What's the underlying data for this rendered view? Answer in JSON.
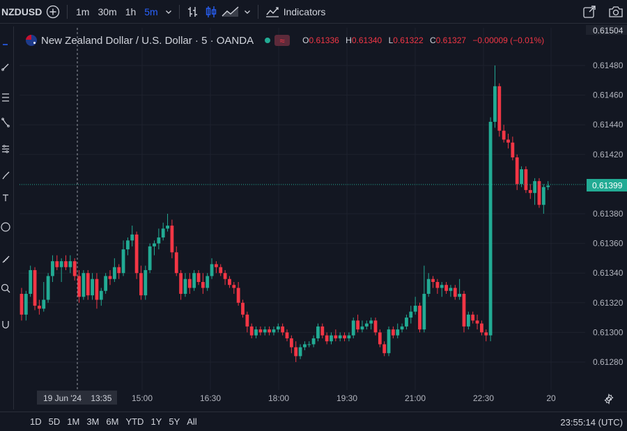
{
  "toolbar": {
    "symbol": "NZDUSD",
    "intervals": [
      "1m",
      "30m",
      "1h",
      "5m"
    ],
    "active_interval": "5m",
    "indicators_label": "Indicators"
  },
  "legend": {
    "title": "New Zealand Dollar / U.S. Dollar · 5 · OANDA",
    "badge": "≈",
    "o_label": "O",
    "o_value": "0.61336",
    "h_label": "H",
    "h_value": "0.61340",
    "l_label": "L",
    "l_value": "0.61322",
    "c_label": "C",
    "c_value": "0.61327",
    "change": "−0.00009 (−0.01%)"
  },
  "price_axis": {
    "top_partial": "0.61504",
    "ticks": [
      "0.61480",
      "0.61460",
      "0.61440",
      "0.61420",
      "0.61380",
      "0.61360",
      "0.61340",
      "0.61320",
      "0.61300",
      "0.61280"
    ],
    "current_price": "0.61399"
  },
  "time_axis": {
    "cursor_label": "19 Jun '24    13:35",
    "ticks": [
      "15:00",
      "16:30",
      "18:00",
      "19:30",
      "21:00",
      "22:30",
      "20"
    ]
  },
  "bottom": {
    "ranges": [
      "1D",
      "5D",
      "1M",
      "3M",
      "6M",
      "YTD",
      "1Y",
      "5Y",
      "All"
    ],
    "clock": "23:55:14 (UTC)"
  },
  "colors": {
    "up": "#22ab94",
    "down": "#f23645",
    "accent": "#2962ff",
    "background": "#131722"
  },
  "chart_data": {
    "type": "candlestick",
    "symbol": "NZDUSD",
    "interval": "5",
    "x_start": "19 Jun '24 12:55",
    "ylim": [
      0.61265,
      0.61504
    ],
    "current_price": 0.61399,
    "candles": [
      [
        0.61326,
        0.6133,
        0.61308,
        0.61312
      ],
      [
        0.61312,
        0.61328,
        0.61308,
        0.61326
      ],
      [
        0.61326,
        0.61345,
        0.61324,
        0.61342
      ],
      [
        0.61342,
        0.61344,
        0.61315,
        0.61318
      ],
      [
        0.61318,
        0.61322,
        0.61312,
        0.61316
      ],
      [
        0.61316,
        0.61334,
        0.61314,
        0.61322
      ],
      [
        0.61322,
        0.6134,
        0.6132,
        0.61338
      ],
      [
        0.61338,
        0.61352,
        0.61334,
        0.61348
      ],
      [
        0.61348,
        0.61352,
        0.61342,
        0.61344
      ],
      [
        0.61344,
        0.6135,
        0.61334,
        0.61348
      ],
      [
        0.61348,
        0.61352,
        0.61342,
        0.61344
      ],
      [
        0.61344,
        0.61352,
        0.6134,
        0.61348
      ],
      [
        0.61348,
        0.6135,
        0.61335,
        0.61338
      ],
      [
        0.61338,
        0.61342,
        0.6132,
        0.61324
      ],
      [
        0.61324,
        0.61342,
        0.61322,
        0.6134
      ],
      [
        0.6134,
        0.61342,
        0.61322,
        0.61325
      ],
      [
        0.61325,
        0.6134,
        0.61322,
        0.61336
      ],
      [
        0.61336,
        0.6134,
        0.61316,
        0.61322
      ],
      [
        0.61322,
        0.6133,
        0.61318,
        0.61328
      ],
      [
        0.61328,
        0.6134,
        0.61326,
        0.61338
      ],
      [
        0.61338,
        0.61342,
        0.61332,
        0.61336
      ],
      [
        0.61336,
        0.6135,
        0.61334,
        0.61344
      ],
      [
        0.61344,
        0.61346,
        0.61336,
        0.6134
      ],
      [
        0.6134,
        0.61362,
        0.61338,
        0.61356
      ],
      [
        0.61356,
        0.61364,
        0.61352,
        0.61362
      ],
      [
        0.61362,
        0.61372,
        0.61358,
        0.61366
      ],
      [
        0.61366,
        0.61368,
        0.61336,
        0.6134
      ],
      [
        0.6134,
        0.61345,
        0.61322,
        0.61325
      ],
      [
        0.61325,
        0.61345,
        0.61322,
        0.61342
      ],
      [
        0.61342,
        0.6136,
        0.6134,
        0.61358
      ],
      [
        0.61358,
        0.61362,
        0.61352,
        0.6136
      ],
      [
        0.6136,
        0.6137,
        0.61356,
        0.61364
      ],
      [
        0.61364,
        0.61374,
        0.61362,
        0.6137
      ],
      [
        0.6137,
        0.6138,
        0.61368,
        0.61372
      ],
      [
        0.61372,
        0.61376,
        0.6135,
        0.61354
      ],
      [
        0.61354,
        0.61358,
        0.61338,
        0.6134
      ],
      [
        0.6134,
        0.61342,
        0.61322,
        0.61326
      ],
      [
        0.61326,
        0.6134,
        0.61324,
        0.61336
      ],
      [
        0.61336,
        0.6134,
        0.61326,
        0.6133
      ],
      [
        0.6133,
        0.61342,
        0.61328,
        0.6134
      ],
      [
        0.6134,
        0.61342,
        0.61332,
        0.61334
      ],
      [
        0.61334,
        0.6134,
        0.61326,
        0.6133
      ],
      [
        0.6133,
        0.6134,
        0.61328,
        0.61338
      ],
      [
        0.61338,
        0.6135,
        0.61336,
        0.61346
      ],
      [
        0.61346,
        0.61348,
        0.6134,
        0.61344
      ],
      [
        0.61344,
        0.61346,
        0.61338,
        0.6134
      ],
      [
        0.6134,
        0.61342,
        0.61332,
        0.61336
      ],
      [
        0.61336,
        0.61338,
        0.6133,
        0.61332
      ],
      [
        0.61332,
        0.61334,
        0.61326,
        0.6133
      ],
      [
        0.6133,
        0.61334,
        0.61318,
        0.6132
      ],
      [
        0.6132,
        0.61322,
        0.6131,
        0.61312
      ],
      [
        0.61312,
        0.61314,
        0.613,
        0.61304
      ],
      [
        0.61304,
        0.61306,
        0.61296,
        0.61298
      ],
      [
        0.61298,
        0.61304,
        0.61296,
        0.61302
      ],
      [
        0.61302,
        0.61304,
        0.61298,
        0.613
      ],
      [
        0.613,
        0.61304,
        0.61298,
        0.61302
      ],
      [
        0.61302,
        0.61304,
        0.61298,
        0.613
      ],
      [
        0.613,
        0.61304,
        0.61298,
        0.61302
      ],
      [
        0.61302,
        0.61306,
        0.613,
        0.61304
      ],
      [
        0.61304,
        0.61306,
        0.61298,
        0.613
      ],
      [
        0.613,
        0.61302,
        0.61294,
        0.61296
      ],
      [
        0.61296,
        0.61298,
        0.61286,
        0.6129
      ],
      [
        0.6129,
        0.61294,
        0.6128,
        0.61284
      ],
      [
        0.61284,
        0.61292,
        0.61282,
        0.6129
      ],
      [
        0.6129,
        0.61294,
        0.61288,
        0.61292
      ],
      [
        0.61292,
        0.61294,
        0.6129,
        0.61292
      ],
      [
        0.61292,
        0.61298,
        0.6129,
        0.61296
      ],
      [
        0.61296,
        0.61306,
        0.61294,
        0.61304
      ],
      [
        0.61304,
        0.61306,
        0.61296,
        0.61298
      ],
      [
        0.61298,
        0.613,
        0.61292,
        0.61294
      ],
      [
        0.61294,
        0.613,
        0.61292,
        0.61298
      ],
      [
        0.61298,
        0.61302,
        0.61294,
        0.61296
      ],
      [
        0.61296,
        0.613,
        0.61294,
        0.61298
      ],
      [
        0.61298,
        0.613,
        0.61294,
        0.61296
      ],
      [
        0.61296,
        0.613,
        0.61294,
        0.61298
      ],
      [
        0.61298,
        0.6131,
        0.61296,
        0.61308
      ],
      [
        0.61308,
        0.61312,
        0.613,
        0.61302
      ],
      [
        0.61302,
        0.61308,
        0.613,
        0.61304
      ],
      [
        0.61304,
        0.61308,
        0.61302,
        0.61306
      ],
      [
        0.61306,
        0.6131,
        0.61302,
        0.61308
      ],
      [
        0.61308,
        0.6131,
        0.61298,
        0.613
      ],
      [
        0.613,
        0.61302,
        0.6129,
        0.61292
      ],
      [
        0.61292,
        0.61294,
        0.61284,
        0.61286
      ],
      [
        0.61286,
        0.61304,
        0.61284,
        0.61302
      ],
      [
        0.61302,
        0.61304,
        0.61296,
        0.61298
      ],
      [
        0.61298,
        0.61306,
        0.61296,
        0.61302
      ],
      [
        0.61302,
        0.61306,
        0.613,
        0.61304
      ],
      [
        0.61304,
        0.61312,
        0.61302,
        0.6131
      ],
      [
        0.6131,
        0.61318,
        0.61306,
        0.61314
      ],
      [
        0.61314,
        0.61324,
        0.61312,
        0.61318
      ],
      [
        0.61318,
        0.6132,
        0.613,
        0.61302
      ],
      [
        0.61302,
        0.61345,
        0.613,
        0.61326
      ],
      [
        0.61326,
        0.6134,
        0.61324,
        0.61336
      ],
      [
        0.61336,
        0.61338,
        0.6133,
        0.61334
      ],
      [
        0.61334,
        0.61336,
        0.61326,
        0.6133
      ],
      [
        0.6133,
        0.61334,
        0.61324,
        0.61332
      ],
      [
        0.61332,
        0.61334,
        0.61326,
        0.61328
      ],
      [
        0.61328,
        0.61332,
        0.61324,
        0.6133
      ],
      [
        0.6133,
        0.61332,
        0.61322,
        0.61324
      ],
      [
        0.61324,
        0.61336,
        0.61322,
        0.61326
      ],
      [
        0.61326,
        0.61328,
        0.613,
        0.61304
      ],
      [
        0.61304,
        0.61314,
        0.61302,
        0.61312
      ],
      [
        0.61312,
        0.61314,
        0.61306,
        0.61308
      ],
      [
        0.61308,
        0.61312,
        0.61302,
        0.61306
      ],
      [
        0.61306,
        0.61308,
        0.61298,
        0.613
      ],
      [
        0.613,
        0.61302,
        0.61294,
        0.61298
      ],
      [
        0.61298,
        0.61445,
        0.61294,
        0.61442
      ],
      [
        0.61442,
        0.6148,
        0.61438,
        0.61466
      ],
      [
        0.61466,
        0.61468,
        0.61432,
        0.61436
      ],
      [
        0.61436,
        0.6144,
        0.61428,
        0.6143
      ],
      [
        0.6143,
        0.61434,
        0.61424,
        0.61428
      ],
      [
        0.61428,
        0.61432,
        0.61416,
        0.61418
      ],
      [
        0.61418,
        0.6142,
        0.61396,
        0.614
      ],
      [
        0.614,
        0.61412,
        0.61398,
        0.6141
      ],
      [
        0.6141,
        0.61412,
        0.61394,
        0.61396
      ],
      [
        0.61396,
        0.614,
        0.6139,
        0.61394
      ],
      [
        0.61394,
        0.61404,
        0.61386,
        0.61402
      ],
      [
        0.61402,
        0.61404,
        0.61384,
        0.61386
      ],
      [
        0.61386,
        0.614,
        0.6138,
        0.61398
      ],
      [
        0.61398,
        0.61402,
        0.61396,
        0.61399
      ]
    ]
  }
}
